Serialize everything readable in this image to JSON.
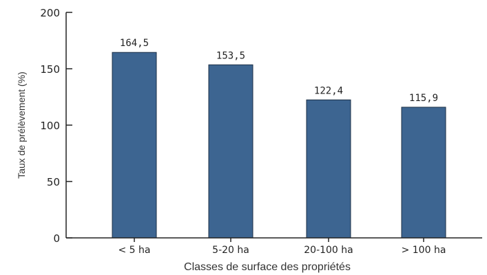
{
  "chart_data": {
    "type": "bar",
    "categories": [
      "< 5 ha",
      "5-20 ha",
      "20-100 ha",
      "> 100 ha"
    ],
    "values": [
      164.5,
      153.5,
      122.4,
      115.9
    ],
    "value_labels": [
      "164,5",
      "153,5",
      "122,4",
      "115,9"
    ],
    "xlabel": "Classes de surface des propriétés",
    "ylabel": "Taux de prélèvement (%)",
    "ylim": [
      0,
      200
    ],
    "yticks": [
      0,
      50,
      100,
      150,
      200
    ],
    "grid": false,
    "bar_color": "#3d6591",
    "bar_edge_color": "#1c2f45"
  }
}
